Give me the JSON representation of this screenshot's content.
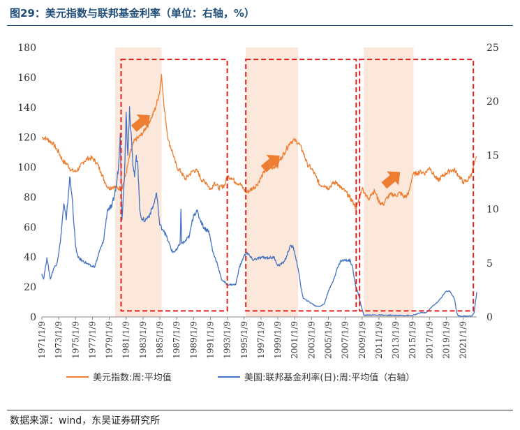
{
  "header": {
    "title": "图29：美元指数与联邦基金利率（单位：右轴，%）"
  },
  "footer": {
    "source": "数据来源：wind，东吴证券研究所"
  },
  "chart_data": {
    "type": "line",
    "title": "图29：美元指数与联邦基金利率（单位：右轴，%）",
    "xlabel": "",
    "ylabel": "",
    "ylim_left": [
      0,
      180
    ],
    "ylim_right": [
      0,
      25
    ],
    "y_left_ticks": [
      0,
      20,
      40,
      60,
      80,
      100,
      120,
      140,
      160,
      180
    ],
    "y_right_ticks": [
      0,
      5,
      10,
      15,
      20,
      25
    ],
    "x_range": [
      1971.0,
      2022.6
    ],
    "x_tick_years": [
      1971,
      1973,
      1975,
      1977,
      1979,
      1981,
      1983,
      1985,
      1987,
      1989,
      1991,
      1993,
      1995,
      1997,
      1999,
      2001,
      2003,
      2005,
      2007,
      2009,
      2011,
      2013,
      2015,
      2017,
      2019,
      2021
    ],
    "x_tick_labels": [
      "1971/1/9",
      "1973/1/9",
      "1975/1/9",
      "1977/1/9",
      "1979/1/9",
      "1981/1/9",
      "1983/1/9",
      "1985/1/9",
      "1987/1/9",
      "1989/1/9",
      "1991/1/9",
      "1993/1/9",
      "1995/1/9",
      "1997/1/9",
      "1999/1/9",
      "2001/1/9",
      "2003/1/9",
      "2005/1/9",
      "2007/1/9",
      "2009/1/9",
      "2011/1/9",
      "2013/1/9",
      "2015/1/9",
      "2017/1/9",
      "2019/1/9",
      "2021/1/9"
    ],
    "grid": false,
    "legend_position": "bottom",
    "series": [
      {
        "name": "美元指数:周:平均值",
        "axis": "left",
        "color": "#ed7d31",
        "x": [
          1971.0,
          1971.6,
          1972.3,
          1973.0,
          1973.5,
          1974.0,
          1974.5,
          1975.0,
          1975.5,
          1976.0,
          1976.5,
          1977.0,
          1977.5,
          1978.0,
          1978.5,
          1978.9,
          1979.5,
          1980.0,
          1980.5,
          1981.0,
          1981.5,
          1982.0,
          1982.5,
          1983.0,
          1983.5,
          1984.0,
          1984.5,
          1985.0,
          1985.2,
          1985.5,
          1986.0,
          1986.5,
          1987.0,
          1987.5,
          1988.0,
          1988.5,
          1989.0,
          1989.5,
          1990.0,
          1990.5,
          1991.0,
          1991.5,
          1992.0,
          1992.7,
          1993.0,
          1993.5,
          1994.0,
          1994.5,
          1995.0,
          1995.3,
          1996.0,
          1996.5,
          1997.0,
          1997.5,
          1998.0,
          1998.5,
          1999.0,
          1999.5,
          2000.0,
          2000.5,
          2001.0,
          2001.5,
          2002.0,
          2002.5,
          2003.0,
          2003.5,
          2004.0,
          2004.5,
          2005.0,
          2005.5,
          2006.0,
          2006.5,
          2007.0,
          2007.5,
          2008.0,
          2008.3,
          2008.7,
          2009.0,
          2009.3,
          2009.8,
          2010.0,
          2010.5,
          2011.0,
          2011.5,
          2012.0,
          2012.5,
          2013.0,
          2013.5,
          2014.0,
          2014.5,
          2015.0,
          2015.5,
          2016.0,
          2016.5,
          2017.0,
          2017.5,
          2018.0,
          2018.5,
          2019.0,
          2019.5,
          2020.0,
          2020.5,
          2021.0,
          2021.5,
          2022.0,
          2022.6
        ],
        "values": [
          120,
          119,
          116,
          110,
          104,
          102,
          98,
          97,
          100,
          104,
          106,
          106,
          103,
          97,
          90,
          86,
          87,
          86,
          86,
          96,
          110,
          118,
          120,
          123,
          128,
          133,
          140,
          151,
          162,
          140,
          118,
          110,
          100,
          97,
          92,
          95,
          98,
          97,
          91,
          90,
          85,
          90,
          86,
          88,
          94,
          93,
          90,
          89,
          85,
          83,
          86,
          88,
          93,
          98,
          100,
          100,
          103,
          107,
          112,
          117,
          118,
          116,
          110,
          102,
          99,
          94,
          88,
          88,
          86,
          89,
          90,
          86,
          84,
          80,
          76,
          72,
          80,
          86,
          83,
          78,
          82,
          84,
          77,
          75,
          80,
          82,
          81,
          83,
          80,
          82,
          95,
          96,
          97,
          96,
          100,
          95,
          91,
          94,
          96,
          98,
          98,
          94,
          90,
          91,
          96,
          107
        ]
      },
      {
        "name": "美国:联邦基金利率(日):周:平均值（右轴）",
        "axis": "right",
        "color": "#4472c4",
        "x": [
          1971.0,
          1971.2,
          1971.6,
          1972.0,
          1972.4,
          1972.8,
          1973.2,
          1973.6,
          1973.9,
          1974.3,
          1974.6,
          1975.0,
          1975.3,
          1975.8,
          1976.3,
          1976.8,
          1977.3,
          1977.8,
          1978.3,
          1978.8,
          1979.3,
          1979.8,
          1980.1,
          1980.3,
          1980.5,
          1980.8,
          1981.0,
          1981.2,
          1981.4,
          1981.6,
          1981.8,
          1982.0,
          1982.2,
          1982.4,
          1982.6,
          1982.9,
          1983.3,
          1983.8,
          1984.3,
          1984.6,
          1985.0,
          1985.5,
          1986.0,
          1986.5,
          1987.0,
          1987.4,
          1987.5,
          1987.6,
          1988.0,
          1988.5,
          1989.0,
          1989.4,
          1989.8,
          1990.3,
          1990.8,
          1991.3,
          1991.8,
          1992.3,
          1993.0,
          1994.0,
          1994.4,
          1994.9,
          1995.3,
          1996.0,
          1997.0,
          1998.0,
          1998.6,
          1999.0,
          1999.6,
          2000.0,
          2000.4,
          2000.8,
          2001.0,
          2001.4,
          2001.8,
          2002.0,
          2003.0,
          2003.5,
          2004.0,
          2004.5,
          2005.0,
          2005.5,
          2006.0,
          2006.5,
          2007.0,
          2007.6,
          2007.9,
          2008.2,
          2008.6,
          2008.9,
          2009.2,
          2010.0,
          2012.0,
          2015.0,
          2015.9,
          2016.6,
          2017.0,
          2017.5,
          2018.0,
          2018.5,
          2019.0,
          2019.4,
          2019.8,
          2020.0,
          2020.2,
          2020.4,
          2021.0,
          2022.0,
          2022.3,
          2022.6
        ],
        "values": [
          4.0,
          3.5,
          5.5,
          3.5,
          4.5,
          5.0,
          7.0,
          10.5,
          9.0,
          13.0,
          11.0,
          6.5,
          5.5,
          5.2,
          5.0,
          4.7,
          4.7,
          6.0,
          7.0,
          10.0,
          10.2,
          12.0,
          14.0,
          17.0,
          9.0,
          13.0,
          19.0,
          15.0,
          19.5,
          17.0,
          14.0,
          13.0,
          15.0,
          14.0,
          10.0,
          9.0,
          9.0,
          9.5,
          10.5,
          11.5,
          8.5,
          8.0,
          7.0,
          6.0,
          6.2,
          6.8,
          10.0,
          6.8,
          7.0,
          7.5,
          9.5,
          9.8,
          9.0,
          8.2,
          8.0,
          6.0,
          5.0,
          3.5,
          3.0,
          3.0,
          4.5,
          5.5,
          6.0,
          5.3,
          5.5,
          5.5,
          5.5,
          4.75,
          5.0,
          5.5,
          6.5,
          6.5,
          6.0,
          4.5,
          2.5,
          1.75,
          1.25,
          1.0,
          1.0,
          1.2,
          2.4,
          3.2,
          4.4,
          5.25,
          5.25,
          5.25,
          4.5,
          3.0,
          2.0,
          1.0,
          0.15,
          0.18,
          0.15,
          0.13,
          0.38,
          0.4,
          0.7,
          1.1,
          1.4,
          1.9,
          2.4,
          2.4,
          1.9,
          1.55,
          0.5,
          0.08,
          0.08,
          0.08,
          0.4,
          2.3
        ],
        "values_unit": "%"
      }
    ],
    "shaded_periods": [
      {
        "start": 1979.7,
        "end": 1985.2
      },
      {
        "start": 1995.2,
        "end": 2001.4
      },
      {
        "start": 2009.2,
        "end": 2015.1
      }
    ],
    "dashed_boxes": [
      {
        "start": 1980.4,
        "end": 1993.0,
        "y_top_left": 172,
        "y_bottom_left": 4
      },
      {
        "start": 1995.2,
        "end": 2008.3,
        "y_top_left": 172,
        "y_bottom_left": 4
      },
      {
        "start": 2008.7,
        "end": 2022.2,
        "y_top_left": 172,
        "y_bottom_left": 4
      }
    ],
    "arrows": [
      {
        "x": 1982.8,
        "y_left": 130,
        "direction": "up-right"
      },
      {
        "x": 1998.2,
        "y_left": 103,
        "direction": "up-right"
      },
      {
        "x": 2012.5,
        "y_left": 92,
        "direction": "up-right"
      }
    ],
    "colors": {
      "shade": "#fbe5d6",
      "dashed": "#e02020",
      "arrow": "#ed7d31"
    }
  }
}
